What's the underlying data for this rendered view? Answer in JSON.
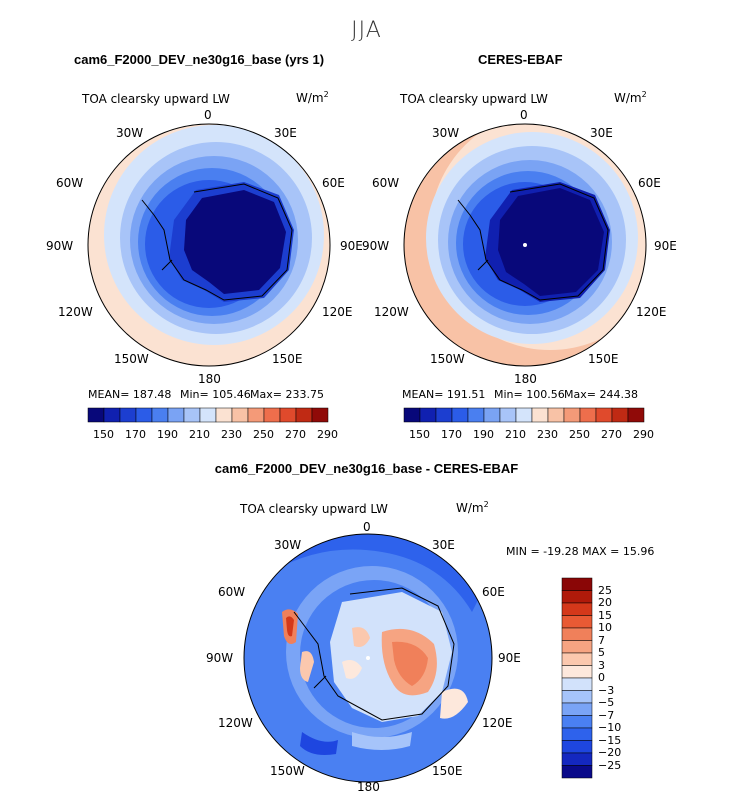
{
  "season": "JJA",
  "panel1": {
    "title": "cam6_F2000_DEV_ne30g16_base (yrs 1)",
    "variable": "TOA clearsky upward LW",
    "units_base": "W/m",
    "units_exp": "2",
    "mean": "MEAN= 187.48",
    "min": "Min= 105.46",
    "max": "Max= 233.75"
  },
  "panel2": {
    "title": "CERES-EBAF",
    "variable": "TOA clearsky upward LW",
    "units_base": "W/m",
    "units_exp": "2",
    "mean": "MEAN= 191.51",
    "min": "Min= 100.56",
    "max": "Max= 244.38"
  },
  "panel3": {
    "title": "cam6_F2000_DEV_ne30g16_base - CERES-EBAF",
    "variable": "TOA clearsky upward LW",
    "units_base": "W/m",
    "units_exp": "2",
    "minmax": "MIN = -19.28 MAX =  15.96"
  },
  "lon_labels": [
    "0",
    "30E",
    "60E",
    "90E",
    "120E",
    "150E",
    "180",
    "150W",
    "120W",
    "90W",
    "60W",
    "30W"
  ],
  "colorbar_abs": {
    "colors": [
      "#08087a",
      "#1020b0",
      "#1c3ed0",
      "#2b5ce8",
      "#4a7ff0",
      "#7aa3f4",
      "#a8c4f8",
      "#d4e4fb",
      "#fbe2d2",
      "#f8c2a6",
      "#f49a78",
      "#ee6e4c",
      "#e04a2c",
      "#c02a14",
      "#900a08"
    ],
    "tick_labels": [
      "150",
      "170",
      "190",
      "210",
      "230",
      "250",
      "270",
      "290"
    ]
  },
  "colorbar_diff": {
    "colors": [
      "#0a0a8a",
      "#1428c0",
      "#1e46e0",
      "#2e62ec",
      "#4a80f2",
      "#7aa4f6",
      "#a6c4fa",
      "#d2e2fb",
      "#fde8dc",
      "#fbc8ae",
      "#f6a482",
      "#f0805a",
      "#e85a34",
      "#d4381a",
      "#b01a0a",
      "#8a0606"
    ],
    "tick_labels": [
      "25",
      "20",
      "15",
      "10",
      "7",
      "5",
      "3",
      "0",
      "−3",
      "−5",
      "−7",
      "−10",
      "−15",
      "−20",
      "−25"
    ]
  }
}
